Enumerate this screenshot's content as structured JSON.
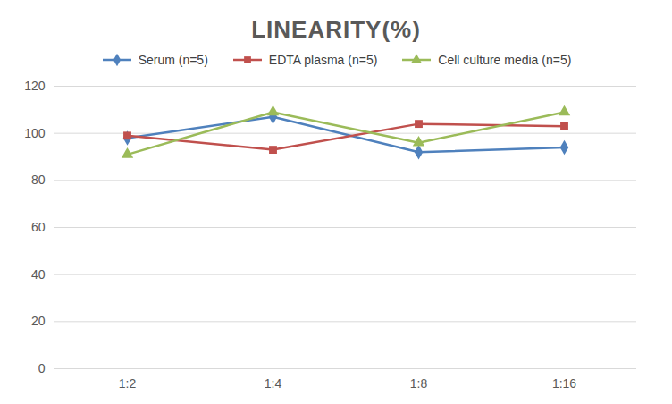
{
  "chart_data": {
    "type": "line",
    "title": "LINEARITY(%)",
    "categories": [
      "1:2",
      "1:4",
      "1:8",
      "1:16"
    ],
    "series": [
      {
        "name": "Serum (n=5)",
        "color": "#4f81bd",
        "marker": "diamond",
        "values": [
          98,
          107,
          92,
          94
        ]
      },
      {
        "name": "EDTA plasma (n=5)",
        "color": "#c0504d",
        "marker": "square",
        "values": [
          99,
          93,
          104,
          103
        ]
      },
      {
        "name": "Cell culture media (n=5)",
        "color": "#9bbb59",
        "marker": "triangle",
        "values": [
          91,
          109,
          96,
          109
        ]
      }
    ],
    "ylim": [
      0,
      120
    ],
    "yticks": [
      0,
      20,
      40,
      60,
      80,
      100,
      120
    ],
    "grid": true,
    "legend": "top"
  }
}
